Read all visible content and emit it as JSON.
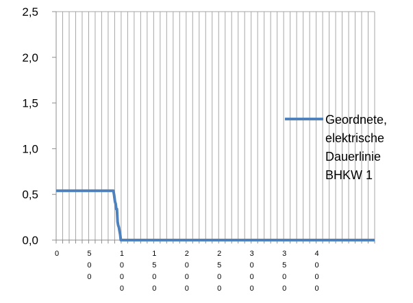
{
  "chart_data": {
    "type": "line",
    "title": "",
    "xlabel": "",
    "ylabel": "",
    "xlim": [
      0,
      4900
    ],
    "ylim": [
      0,
      2.5
    ],
    "yticks": [
      "0,0",
      "0,5",
      "1,0",
      "1,5",
      "2,0",
      "2,5"
    ],
    "ytick_values": [
      0,
      0.5,
      1.0,
      1.5,
      2.0,
      2.5
    ],
    "xtick_values": [
      0,
      500,
      1000,
      1500,
      2000,
      2500,
      3000,
      3500,
      4000
    ],
    "xtick_chars": [
      [
        "0"
      ],
      [
        "5",
        "0",
        "0"
      ],
      [
        "1",
        "0",
        "0",
        "0"
      ],
      [
        "1",
        "5",
        "0",
        "0"
      ],
      [
        "2",
        "0",
        "0",
        "0"
      ],
      [
        "2",
        "5",
        "0",
        "0"
      ],
      [
        "3",
        "0",
        "0",
        "0"
      ],
      [
        "3",
        "5",
        "0",
        "0"
      ],
      [
        "4",
        "0",
        "0",
        "0"
      ]
    ],
    "grid": "vertical",
    "minor_gridline_interval": 100,
    "legend": {
      "position": "right",
      "lines": [
        "Geordnete,",
        "elektrische",
        "Dauerlinie",
        "BHKW 1"
      ]
    },
    "series": [
      {
        "name": "Geordnete, elektrische Dauerlinie BHKW 1",
        "color": "#4f81bd",
        "x": [
          0,
          880,
          890,
          905,
          915,
          925,
          935,
          945,
          955,
          965,
          975,
          985,
          995,
          4900
        ],
        "y": [
          0.54,
          0.54,
          0.5,
          0.42,
          0.4,
          0.34,
          0.34,
          0.2,
          0.16,
          0.14,
          0.1,
          0.06,
          0.0,
          0.0
        ]
      }
    ]
  }
}
